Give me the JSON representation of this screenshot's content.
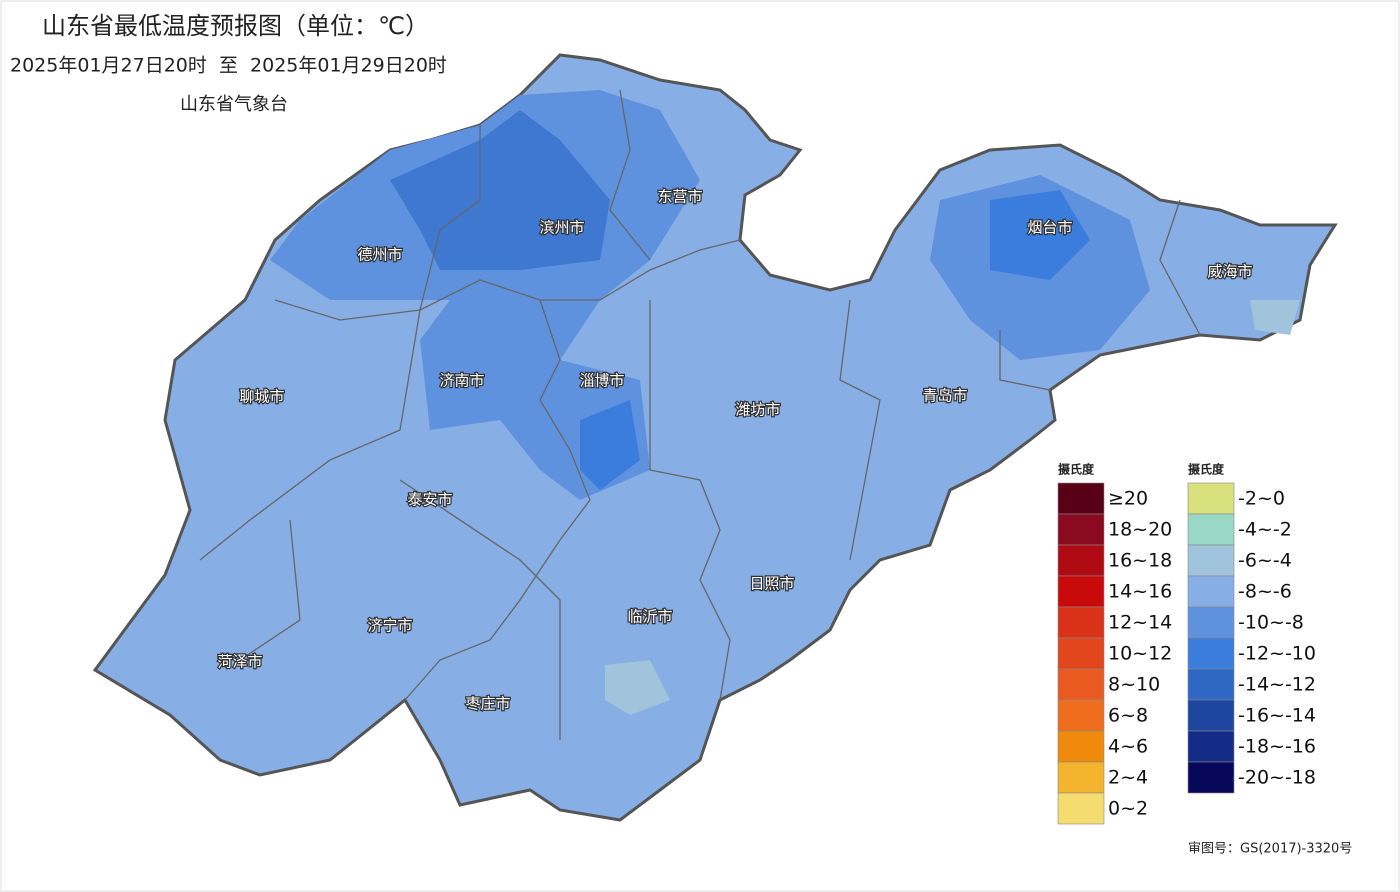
{
  "header": {
    "title": "山东省最低温度预报图（单位：℃）",
    "period": "2025年01月27日20时  至  2025年01月29日20时",
    "issuer": "山东省气象台"
  },
  "cities": [
    "德州市",
    "滨州市",
    "东营市",
    "烟台市",
    "威海市",
    "聊城市",
    "济南市",
    "淄博市",
    "潍坊市",
    "青岛市",
    "泰安市",
    "日照市",
    "临沂市",
    "济宁市",
    "菏泽市",
    "枣庄市"
  ],
  "legend": {
    "warm": {
      "unit": "摄氏度",
      "entries": [
        {
          "label": "≥20",
          "color": "#5a0016"
        },
        {
          "label": "18~20",
          "color": "#8a0a20"
        },
        {
          "label": "16~18",
          "color": "#b00a14"
        },
        {
          "label": "14~16",
          "color": "#c80a0a"
        },
        {
          "label": "12~14",
          "color": "#d93218"
        },
        {
          "label": "10~12",
          "color": "#e2461c"
        },
        {
          "label": "8~10",
          "color": "#ea5a20"
        },
        {
          "label": "6~8",
          "color": "#ee6e1e"
        },
        {
          "label": "4~6",
          "color": "#f08a0c"
        },
        {
          "label": "2~4",
          "color": "#f5b42e"
        },
        {
          "label": "0~2",
          "color": "#f5dc6e"
        }
      ]
    },
    "cold": {
      "unit": "摄氏度",
      "entries": [
        {
          "label": "-2~0",
          "color": "#d9e07e"
        },
        {
          "label": "-4~-2",
          "color": "#98d8c4"
        },
        {
          "label": "-6~-4",
          "color": "#a0c4dc"
        },
        {
          "label": "-8~-6",
          "color": "#88aee6"
        },
        {
          "label": "-10~-8",
          "color": "#5f92de"
        },
        {
          "label": "-12~-10",
          "color": "#3b7ddc"
        },
        {
          "label": "-14~-12",
          "color": "#2e68c4"
        },
        {
          "label": "-16~-14",
          "color": "#1e46a0"
        },
        {
          "label": "-18~-16",
          "color": "#142c88"
        },
        {
          "label": "-20~-18",
          "color": "#08085a"
        }
      ]
    }
  },
  "footer": "审图号：GS(2017)-3320号"
}
